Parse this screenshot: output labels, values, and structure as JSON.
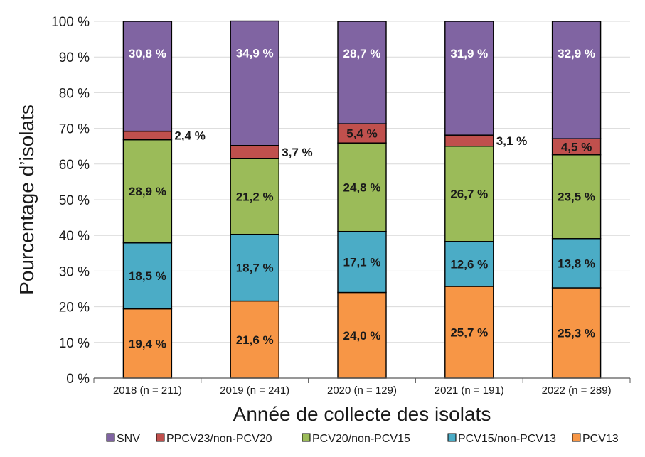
{
  "chart_data": {
    "type": "bar",
    "stacked": true,
    "title": "",
    "xlabel": "Année de collecte des isolats",
    "ylabel": "Pourcentage d’isolats",
    "ylim": [
      0,
      100
    ],
    "yticks": [
      "0 %",
      "10 %",
      "20 %",
      "30 %",
      "40 %",
      "50 %",
      "60 %",
      "70 %",
      "80 %",
      "90 %",
      "100 %"
    ],
    "categories": [
      "2018 (n = 211)",
      "2019 (n = 241)",
      "2020 (n = 129)",
      "2021 (n = 191)",
      "2022 (n = 289)"
    ],
    "series": [
      {
        "name": "PCV13",
        "color": "#f79646",
        "values": [
          19.4,
          21.6,
          24.0,
          25.7,
          25.3
        ],
        "labels": [
          "19,4 %",
          "21,6 %",
          "24,0 %",
          "25,7 %",
          "25,3 %"
        ]
      },
      {
        "name": "PCV15/non-PCV13",
        "color": "#4bacc6",
        "values": [
          18.5,
          18.7,
          17.1,
          12.6,
          13.8
        ],
        "labels": [
          "18,5 %",
          "18,7 %",
          "17,1 %",
          "12,6 %",
          "13,8 %"
        ]
      },
      {
        "name": "PCV20/non-PCV15",
        "color": "#9bbb59",
        "values": [
          28.9,
          21.2,
          24.8,
          26.7,
          23.5
        ],
        "labels": [
          "28,9 %",
          "21,2 %",
          "24,8 %",
          "26,7 %",
          "23,5 %"
        ]
      },
      {
        "name": "PPCV23/non-PCV20",
        "color": "#c0504d",
        "values": [
          2.4,
          3.7,
          5.4,
          3.1,
          4.5
        ],
        "labels": [
          "2,4 %",
          "3,7 %",
          "5,4 %",
          "3,1 %",
          "4,5 %"
        ]
      },
      {
        "name": "SNV",
        "color": "#8064a2",
        "values": [
          30.8,
          34.9,
          28.7,
          31.9,
          32.9
        ],
        "labels": [
          "30,8 %",
          "34,9 %",
          "28,7 %",
          "31,9 %",
          "32,9 %"
        ]
      }
    ],
    "legend": {
      "position": "bottom",
      "order": [
        "SNV",
        "PPCV23/non-PCV20",
        "PCV20/non-PCV15",
        "PCV15/non-PCV13",
        "PCV13"
      ]
    },
    "grid": true
  }
}
